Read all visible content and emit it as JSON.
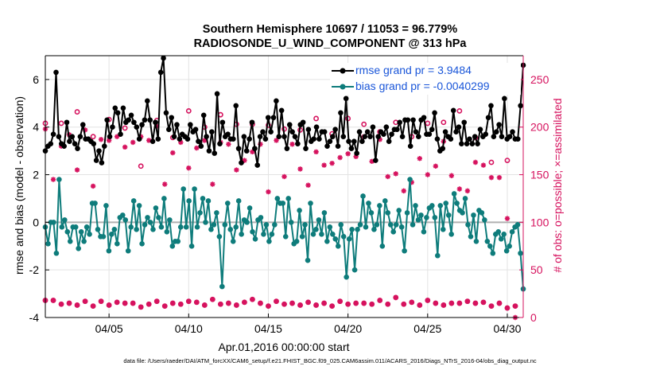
{
  "chart_data": {
    "type": "line",
    "title": "Southern Hemisphere 10697 / 11053 = 96.779%",
    "subtitle": "RADIOSONDE_U_WIND_COMPONENT @ 313 hPa",
    "xlabel": "Apr.01,2016 00:00:00 start",
    "ylabel": "rmse and bias (model - observation)",
    "y2label": "# of obs: o=possible; ×=assimilated",
    "x_tick_labels": [
      "04/05",
      "04/10",
      "04/15",
      "04/20",
      "04/25",
      "04/30"
    ],
    "x_ticks": [
      5,
      10,
      15,
      20,
      25,
      30
    ],
    "xlim": [
      1,
      31
    ],
    "ylim": [
      -4,
      7
    ],
    "y_ticks": [
      -4,
      -2,
      0,
      2,
      4,
      6
    ],
    "y2lim": [
      0,
      275
    ],
    "y2_ticks": [
      0,
      50,
      100,
      150,
      200,
      250
    ],
    "grid": true,
    "legend_location": "top-right",
    "footnote": "data file: /Users/raeder/DAI/ATM_forcXX/CAM6_setup/f.e21.FHIST_BGC.f09_025.CAM6assim.011/ACARS_2016/Diags_NTrS_2016-04/obs_diag_output.nc",
    "colors": {
      "rmse": "#000000",
      "bias": "#0e7c7b",
      "counts": "#d6125e",
      "right_axis": "#d6125e",
      "legend_text": "#1a56d9",
      "zero_line": "#b0b0b0"
    },
    "series": [
      {
        "name": "rmse grand pr = 3.9484",
        "color": "#000000",
        "values": [
          3.0,
          3.2,
          3.3,
          3.7,
          6.3,
          3.6,
          3.3,
          3.2,
          4.2,
          3.4,
          3.6,
          3.3,
          3.1,
          3.6,
          4.1,
          3.5,
          3.5,
          3.4,
          3.3,
          2.6,
          3.0,
          2.5,
          3.2,
          4.3,
          3.6,
          4.0,
          4.8,
          4.6,
          3.7,
          4.8,
          4.2,
          4.3,
          4.5,
          4.2,
          4.0,
          3.5,
          4.1,
          4.3,
          5.1,
          4.3,
          3.4,
          4.2,
          3.5,
          6.3,
          6.9,
          4.6,
          3.9,
          4.4,
          3.6,
          4.1,
          3.5,
          3.7,
          3.6,
          3.5,
          4.1,
          3.8,
          3.9,
          3.4,
          3.2,
          4.5,
          3.6,
          3.0,
          3.8,
          2.9,
          5.4,
          3.3,
          4.2,
          3.6,
          3.7,
          3.5,
          3.5,
          4.9,
          3.1,
          2.5,
          3.6,
          3.0,
          3.5,
          4.2,
          3.1,
          2.4,
          3.6,
          3.8,
          3.5,
          4.4,
          3.8,
          4.4,
          5.1,
          3.6,
          4.7,
          3.6,
          3.1,
          4.1,
          3.8,
          3.6,
          3.3,
          4.1,
          4.2,
          3.1,
          3.9,
          3.4,
          3.5,
          4.0,
          3.5,
          3.8,
          3.8,
          3.2,
          3.4,
          3.6,
          3.9,
          3.2,
          4.6,
          3.6,
          5.2,
          3.4,
          3.1,
          3.4,
          2.9,
          3.8,
          3.4,
          3.6,
          3.8,
          3.6,
          4.0,
          2.6,
          3.6,
          3.8,
          3.7,
          4.0,
          3.4,
          3.7,
          3.9,
          3.9,
          4.2,
          3.6,
          4.3,
          4.3,
          3.2,
          4.3,
          3.8,
          3.6,
          4.3,
          4.4,
          3.7,
          3.7,
          3.9,
          4.6,
          3.5,
          3.0,
          3.1,
          3.8,
          3.6,
          3.5,
          4.7,
          3.8,
          4.0,
          3.3,
          4.2,
          3.3,
          3.5,
          3.3,
          3.6,
          3.3,
          3.9,
          3.6,
          3.7,
          4.4,
          4.9,
          3.6,
          3.8,
          4.1,
          3.6,
          5.2,
          3.5,
          3.6,
          3.8,
          3.5,
          3.5,
          4.9,
          6.6
        ]
      },
      {
        "name": "bias grand pr = -0.0040299",
        "color": "#0e7c7b",
        "values": [
          -0.2,
          -0.9,
          0.0,
          0.0,
          -1.3,
          1.8,
          -0.2,
          0.1,
          -0.4,
          -0.8,
          -0.2,
          -0.2,
          -1.1,
          -0.4,
          -0.8,
          -0.2,
          -0.5,
          0.8,
          0.8,
          -0.3,
          -0.6,
          -0.6,
          0.7,
          -1.2,
          -0.5,
          -0.3,
          -0.9,
          0.2,
          0.3,
          0.1,
          -1.2,
          -0.2,
          0.9,
          -0.3,
          0.7,
          -0.9,
          -0.1,
          0.2,
          0.0,
          -0.3,
          0.6,
          0.2,
          -0.2,
          1.0,
          -0.4,
          0.1,
          -1.0,
          -0.8,
          -0.8,
          -0.2,
          1.4,
          -0.2,
          0.9,
          -1.0,
          1.4,
          -0.2,
          0.4,
          1.0,
          0.0,
          0.9,
          -0.3,
          -0.1,
          0.4,
          -0.6,
          -2.7,
          -0.1,
          0.8,
          -0.3,
          -0.8,
          -0.2,
          0.9,
          -0.5,
          0.1,
          0.0,
          0.6,
          -0.4,
          -0.7,
          0.1,
          0.2,
          -0.5,
          -0.1,
          -0.8,
          -0.5,
          -0.1,
          1.0,
          0.8,
          0.8,
          -0.6,
          1.0,
          0.0,
          -0.9,
          -0.8,
          0.5,
          -0.6,
          -0.1,
          -1.6,
          0.8,
          -0.5,
          -0.3,
          0.1,
          -0.5,
          0.4,
          -0.8,
          -0.2,
          -0.5,
          -0.7,
          -1.0,
          -0.1,
          -0.6,
          -2.3,
          -0.7,
          -0.3,
          -2.0,
          -0.3,
          -0.1,
          1.1,
          -0.2,
          0.8,
          0.4,
          -0.3,
          -0.1,
          0.7,
          -1.0,
          0.9,
          0.4,
          -0.1,
          -0.4,
          -0.1,
          0.5,
          -0.2,
          -1.2,
          0.4,
          1.8,
          -0.1,
          0.7,
          0.1,
          0.3,
          -0.4,
          0.2,
          0.6,
          0.7,
          0.2,
          -1.4,
          0.7,
          -0.3,
          0.8,
          0.3,
          -0.5,
          1.2,
          0.8,
          0.5,
          0.4,
          1.0,
          -0.1,
          -0.6,
          0.3,
          -0.8,
          0.5,
          0.4,
          0.1,
          -0.8,
          -1.0,
          -1.3,
          -0.5,
          -0.4,
          -0.7,
          -0.5,
          -1.2,
          -1.0,
          -0.4,
          -0.2,
          -0.1,
          -1.3,
          -2.8
        ]
      },
      {
        "name": "possible count (o)",
        "color": "#d6125e",
        "y_axis": "right",
        "pattern_days": [
          1,
          1.5,
          2,
          2.5,
          3,
          3.5,
          4,
          4.5,
          5,
          5.5,
          6,
          6.5,
          7,
          7.5,
          8,
          8.5,
          9,
          9.5,
          10,
          10.5,
          11,
          11.5,
          12,
          12.5,
          13,
          13.5,
          14,
          14.5,
          15,
          15.5,
          16,
          16.5,
          17,
          17.5,
          18,
          18.5,
          19,
          19.5,
          20,
          20.5,
          21,
          21.5,
          22,
          22.5,
          23,
          23.5,
          24,
          24.5,
          25,
          25.5,
          26,
          26.5,
          27,
          27.5,
          28,
          28.5,
          29,
          29.5,
          30,
          30.5
        ],
        "values": [
          18,
          18,
          14,
          15,
          13,
          17,
          12,
          17,
          13,
          16,
          15,
          15,
          11,
          14,
          17,
          12,
          15,
          14,
          17,
          16,
          13,
          19,
          14,
          15,
          13,
          16,
          19,
          15,
          12,
          17,
          14,
          15,
          13,
          16,
          13,
          15,
          12,
          17,
          14,
          15,
          15,
          14,
          18,
          14,
          21,
          14,
          16,
          13,
          18,
          15,
          13,
          15,
          15,
          17,
          15,
          16,
          12,
          15,
          10,
          12
        ]
      },
      {
        "name": "assimilated count (×)",
        "color": "#d6125e",
        "y_axis": "right",
        "pattern_days": [
          1,
          1.5,
          2,
          2.5,
          3,
          3.5,
          4,
          4.5,
          5,
          5.5,
          6,
          6.5,
          7,
          7.5,
          8,
          8.5,
          9,
          9.5,
          10,
          10.5,
          11,
          11.5,
          12,
          12.5,
          13,
          13.5,
          14,
          14.5,
          15,
          15.5,
          16,
          16.5,
          17,
          17.5,
          18,
          18.5,
          19,
          19.5,
          20,
          20.5,
          21,
          21.5,
          22,
          22.5,
          23,
          23.5,
          24,
          24.5,
          25,
          25.5,
          26,
          26.5,
          27,
          27.5,
          28,
          28.5,
          29,
          29.5,
          30,
          30.5
        ],
        "values": [
          198,
          145,
          180,
          192,
          155,
          197,
          138,
          187,
          186,
          190,
          179,
          184,
          190,
          186,
          201,
          140,
          173,
          184,
          157,
          178,
          186,
          140,
          184,
          182,
          155,
          165,
          174,
          182,
          132,
          186,
          148,
          182,
          156,
          139,
          174,
          160,
          162,
          168,
          172,
          169,
          190,
          164,
          187,
          148,
          151,
          133,
          142,
          167,
          150,
          159,
          185,
          149,
          135,
          133,
          163,
          160,
          147,
          147,
          104,
          0
        ]
      },
      {
        "name": "possible count upper (o)",
        "color": "#d6125e",
        "y_axis": "right",
        "pattern_days": [
          1,
          2,
          3,
          4,
          5,
          6,
          7,
          8,
          9,
          10,
          11,
          12,
          13,
          14,
          15,
          16,
          17,
          18,
          19,
          20,
          21,
          22,
          23,
          24,
          25,
          26,
          27,
          28,
          29,
          30
        ],
        "values": [
          204,
          204,
          216,
          190,
          208,
          199,
          159,
          207,
          189,
          217,
          200,
          213,
          203,
          203,
          202,
          198,
          197,
          209,
          193,
          209,
          203,
          195,
          205,
          190,
          204,
          205,
          217,
          189,
          163,
          165
        ]
      }
    ]
  }
}
